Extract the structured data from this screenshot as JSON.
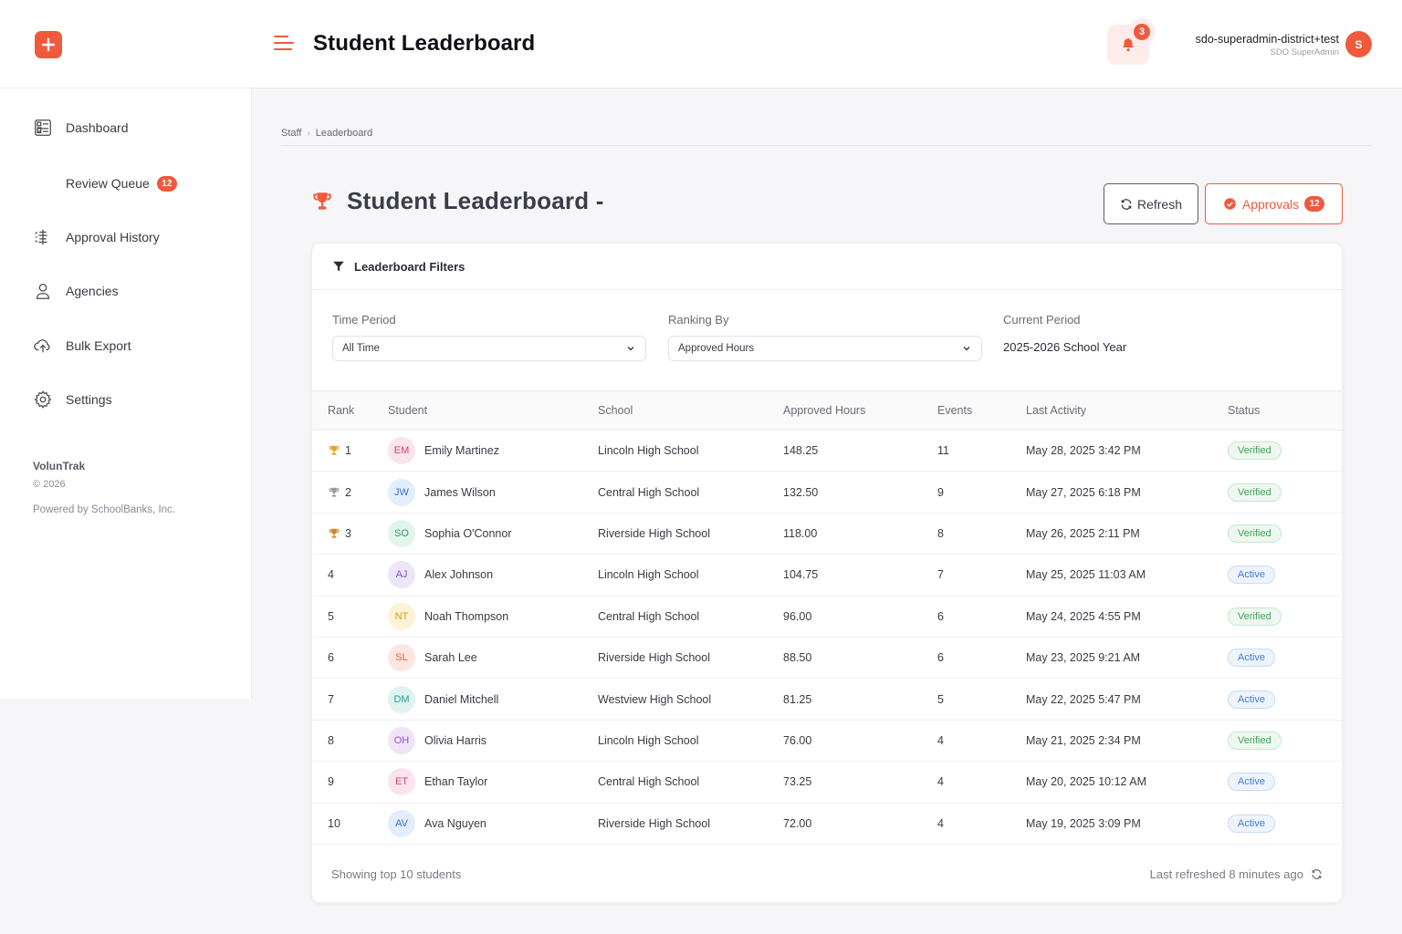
{
  "header": {
    "title": "Student Leaderboard",
    "notifications_count": "3",
    "user_name": "sdo-superadmin-district+test",
    "user_role": "SDO SuperAdmin",
    "user_initial": "S"
  },
  "sidebar": {
    "items": [
      {
        "label": "Dashboard",
        "icon": "dashboard-icon"
      },
      {
        "label": "Review Queue",
        "badge": "12"
      },
      {
        "label": "Approval History",
        "icon": "approval-history-icon"
      },
      {
        "label": "Agencies",
        "icon": "user-icon"
      },
      {
        "label": "Bulk Export",
        "icon": "cloud-upload-icon"
      },
      {
        "label": "Settings",
        "icon": "gear-icon"
      }
    ],
    "brand_name": "VolunTrak",
    "copyright": "© 2026",
    "powered_by": "Powered by SchoolBanks, Inc."
  },
  "breadcrumb": {
    "parent": "Staff",
    "current": "Leaderboard"
  },
  "page": {
    "title": "Student Leaderboard -",
    "refresh_label": "Refresh",
    "approvals_label": "Approvals",
    "approvals_count": "12"
  },
  "filters": {
    "heading": "Leaderboard Filters",
    "time_period_label": "Time Period",
    "time_period_value": "All Time",
    "ranking_by_label": "Ranking By",
    "ranking_by_value": "Approved Hours",
    "current_period_label": "Current Period",
    "current_period_value": "2025-2026 School Year"
  },
  "table": {
    "headers": [
      "Rank",
      "Student",
      "School",
      "Approved Hours",
      "Events",
      "Last Activity",
      "Status"
    ],
    "rows": [
      {
        "rank": "1",
        "trophy": "gold",
        "initials": "EM",
        "name": "Emily Martinez",
        "school": "Lincoln High School",
        "hours": "148.25",
        "events": "11",
        "activity": "May 28, 2025 3:42 PM",
        "status": "Verified"
      },
      {
        "rank": "2",
        "trophy": "silver",
        "initials": "JW",
        "name": "James Wilson",
        "school": "Central High School",
        "hours": "132.50",
        "events": "9",
        "activity": "May 27, 2025 6:18 PM",
        "status": "Verified"
      },
      {
        "rank": "3",
        "trophy": "bronze",
        "initials": "SO",
        "name": "Sophia O'Connor",
        "school": "Riverside High School",
        "hours": "118.00",
        "events": "8",
        "activity": "May 26, 2025 2:11 PM",
        "status": "Verified"
      },
      {
        "rank": "4",
        "initials": "AJ",
        "name": "Alex Johnson",
        "school": "Lincoln High School",
        "hours": "104.75",
        "events": "7",
        "activity": "May 25, 2025 11:03 AM",
        "status": "Active"
      },
      {
        "rank": "5",
        "initials": "NT",
        "name": "Noah Thompson",
        "school": "Central High School",
        "hours": "96.00",
        "events": "6",
        "activity": "May 24, 2025 4:55 PM",
        "status": "Verified"
      },
      {
        "rank": "6",
        "initials": "SL",
        "name": "Sarah Lee",
        "school": "Riverside High School",
        "hours": "88.50",
        "events": "6",
        "activity": "May 23, 2025 9:21 AM",
        "status": "Active"
      },
      {
        "rank": "7",
        "initials": "DM",
        "name": "Daniel Mitchell",
        "school": "Westview High School",
        "hours": "81.25",
        "events": "5",
        "activity": "May 22, 2025 5:47 PM",
        "status": "Active"
      },
      {
        "rank": "8",
        "initials": "OH",
        "name": "Olivia Harris",
        "school": "Lincoln High School",
        "hours": "76.00",
        "events": "4",
        "activity": "May 21, 2025 2:34 PM",
        "status": "Verified"
      },
      {
        "rank": "9",
        "initials": "ET",
        "name": "Ethan Taylor",
        "school": "Central High School",
        "hours": "73.25",
        "events": "4",
        "activity": "May 20, 2025 10:12 AM",
        "status": "Active"
      },
      {
        "rank": "10",
        "initials": "AV",
        "name": "Ava Nguyen",
        "school": "Riverside High School",
        "hours": "72.00",
        "events": "4",
        "activity": "May 19, 2025 3:09 PM",
        "status": "Active"
      }
    ]
  },
  "footer": {
    "showing": "Showing top 10 students",
    "last_refreshed": "Last refreshed 8 minutes ago"
  },
  "colors": {
    "accent": "#f05a3c",
    "gold": "#e6a21c",
    "silver": "#9a9aa3",
    "bronze": "#d9822b",
    "verified": "#3aa557",
    "active": "#3f7cd6"
  },
  "avatar_colors": {
    "EM": [
      "#fce4ec",
      "#d63a7a"
    ],
    "JW": [
      "#e3edfb",
      "#3a6fd0"
    ],
    "SO": [
      "#e2f5ec",
      "#2f9e66"
    ],
    "AJ": [
      "#ece6f8",
      "#7a55c7"
    ],
    "NT": [
      "#fdf3d6",
      "#d4a017"
    ],
    "SL": [
      "#fde6e0",
      "#e0623a"
    ],
    "DM": [
      "#e0f3f1",
      "#2a9d8f"
    ],
    "OH": [
      "#f0e4f7",
      "#9b4fc7"
    ],
    "ET": [
      "#fce4ec",
      "#d63a7a"
    ],
    "AV": [
      "#e3edfb",
      "#3a6fd0"
    ]
  }
}
